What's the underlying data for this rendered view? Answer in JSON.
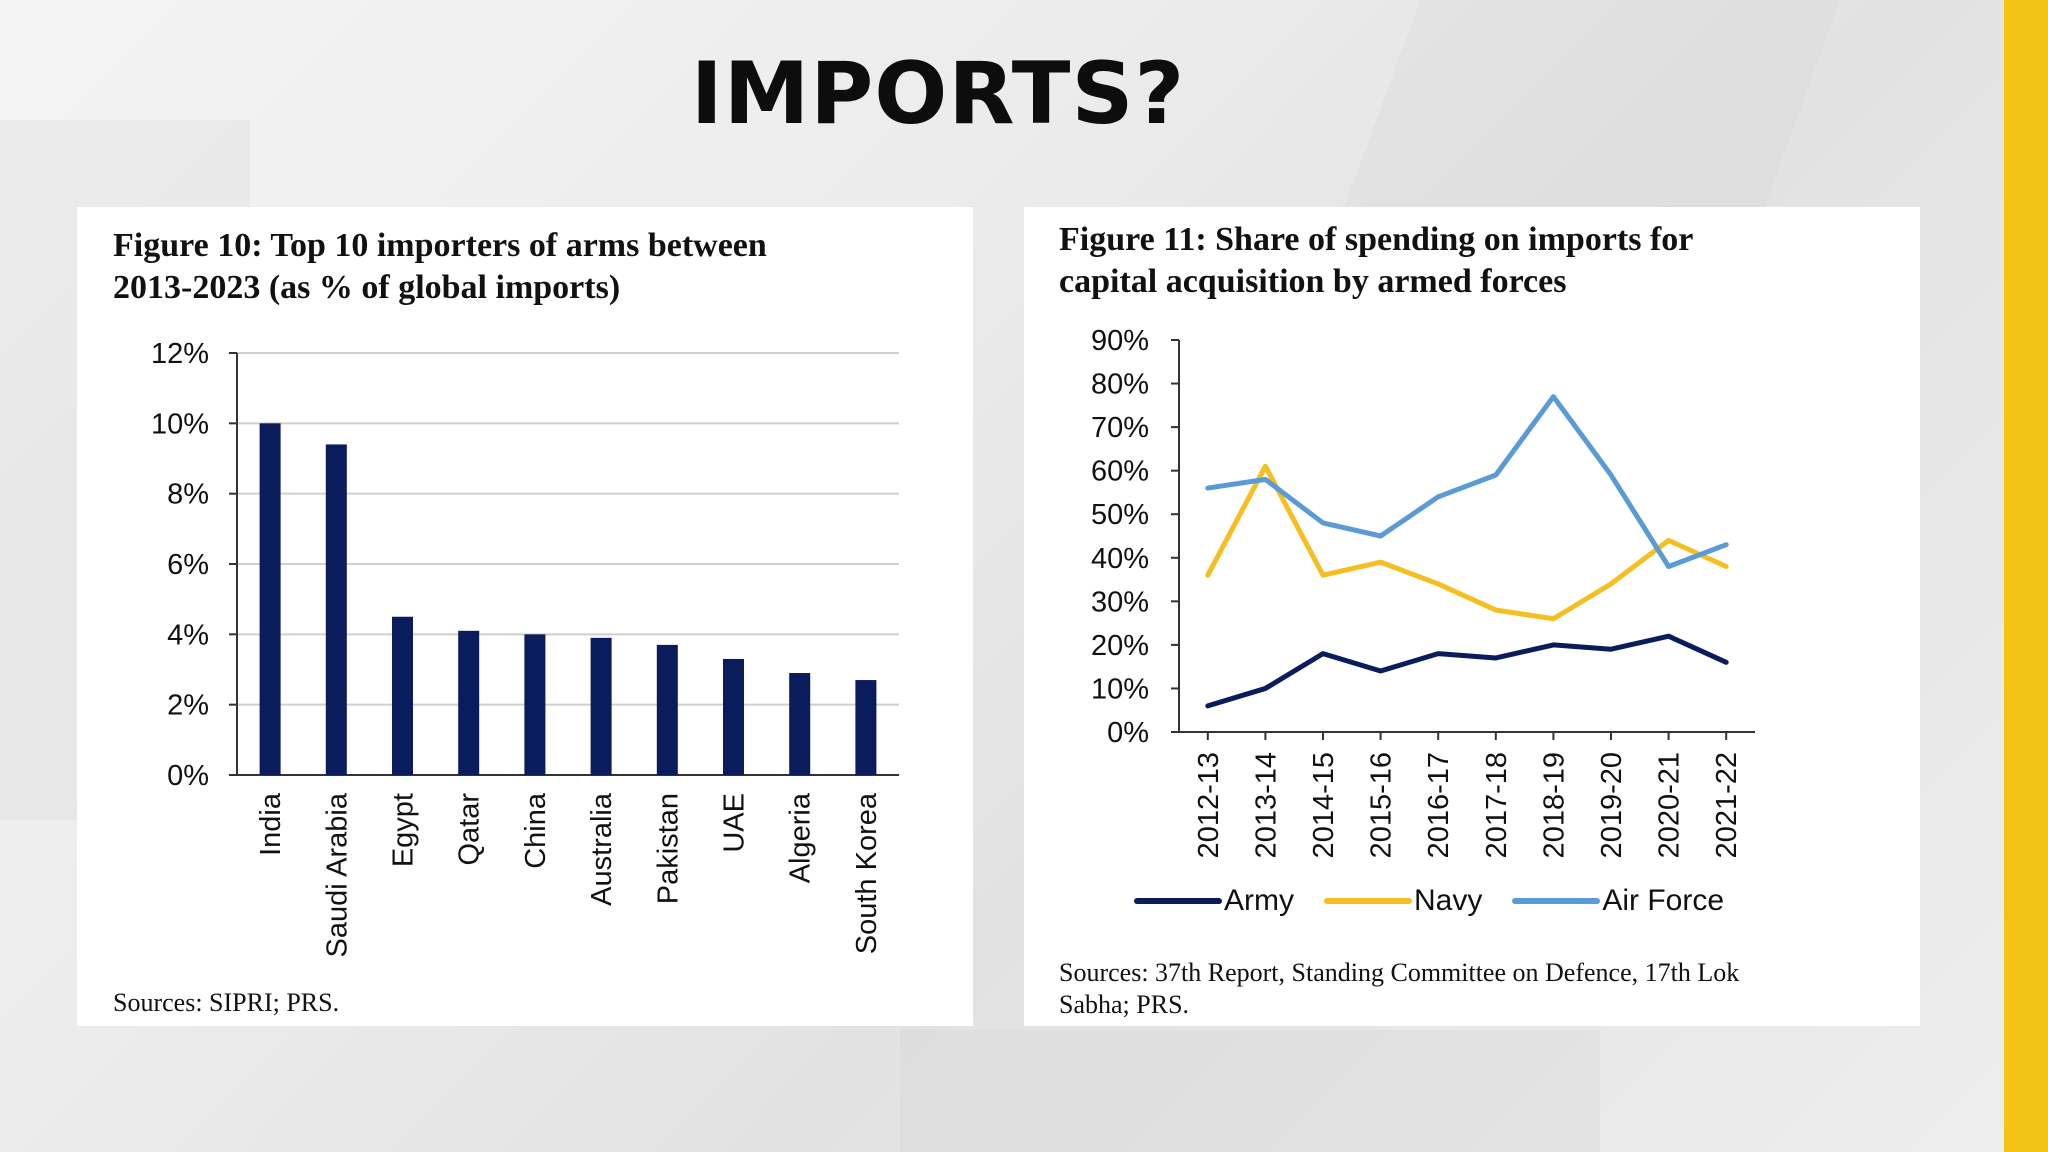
{
  "slide": {
    "title": "IMPORTS?",
    "accent_color": "#f3c316"
  },
  "figure10": {
    "title_line1": "Figure 10: Top 10 importers of arms between",
    "title_line2": "2013-2023 (as % of global imports)",
    "source": "Sources: SIPRI; PRS."
  },
  "figure11": {
    "title_line1": "Figure 11: Share of spending on imports for",
    "title_line2": "capital acquisition by armed forces",
    "source_line1": "Sources: 37th Report, Standing Committee on Defence, 17th Lok",
    "source_line2": "Sabha; PRS."
  },
  "chart_data": [
    {
      "type": "bar",
      "categories": [
        "India",
        "Saudi Arabia",
        "Egypt",
        "Qatar",
        "China",
        "Australia",
        "Pakistan",
        "UAE",
        "Algeria",
        "South Korea"
      ],
      "values": [
        10.0,
        9.4,
        4.5,
        4.1,
        4.0,
        3.9,
        3.7,
        3.3,
        2.9,
        2.7
      ],
      "ylim": [
        0,
        12
      ],
      "yticks": [
        "0%",
        "2%",
        "4%",
        "6%",
        "8%",
        "10%",
        "12%"
      ],
      "ytick_values": [
        0,
        2,
        4,
        6,
        8,
        10,
        12
      ],
      "bar_color": "#0b1c5c",
      "grid": true,
      "legend": "none"
    },
    {
      "type": "line",
      "categories": [
        "2012-13",
        "2013-14",
        "2014-15",
        "2015-16",
        "2016-17",
        "2017-18",
        "2018-19",
        "2019-20",
        "2020-21",
        "2021-22"
      ],
      "series": [
        {
          "name": "Army",
          "color": "#0b1c5c",
          "values": [
            6,
            10,
            18,
            14,
            18,
            17,
            20,
            19,
            22,
            16
          ]
        },
        {
          "name": "Navy",
          "color": "#f5bf21",
          "values": [
            36,
            61,
            36,
            39,
            34,
            28,
            26,
            34,
            44,
            38
          ]
        },
        {
          "name": "Air Force",
          "color": "#5b9bd5",
          "values": [
            56,
            58,
            48,
            45,
            54,
            59,
            77,
            59,
            38,
            43
          ]
        }
      ],
      "ylim": [
        0,
        90
      ],
      "yticks": [
        "0%",
        "10%",
        "20%",
        "30%",
        "40%",
        "50%",
        "60%",
        "70%",
        "80%",
        "90%"
      ],
      "ytick_values": [
        0,
        10,
        20,
        30,
        40,
        50,
        60,
        70,
        80,
        90
      ],
      "grid": false,
      "legend": "bottom"
    }
  ]
}
